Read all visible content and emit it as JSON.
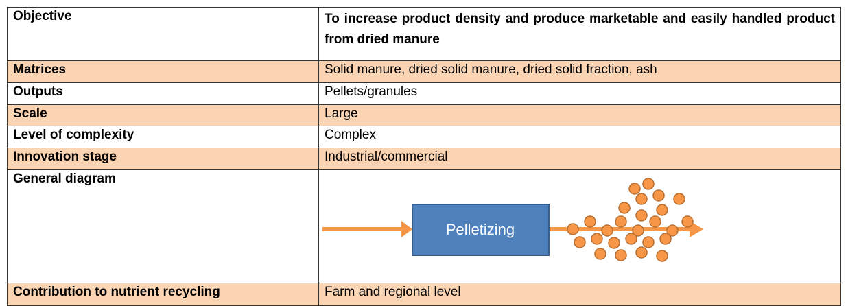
{
  "table": {
    "rows": [
      [
        "Objective",
        "To increase product density and produce marketable and easily handled product from dried manure"
      ],
      [
        "Matrices",
        "Solid manure, dried solid manure, dried solid fraction, ash"
      ],
      [
        "Outputs",
        "Pellets/granules"
      ],
      [
        "Scale",
        "Large"
      ],
      [
        "Level of complexity",
        "Complex"
      ],
      [
        "Innovation stage",
        "Industrial/commercial"
      ],
      [
        "General diagram",
        ""
      ],
      [
        "Contribution to nutrient recycling",
        "Farm and regional level"
      ]
    ]
  },
  "diagram": {
    "box_label": "Pelletizing"
  }
}
